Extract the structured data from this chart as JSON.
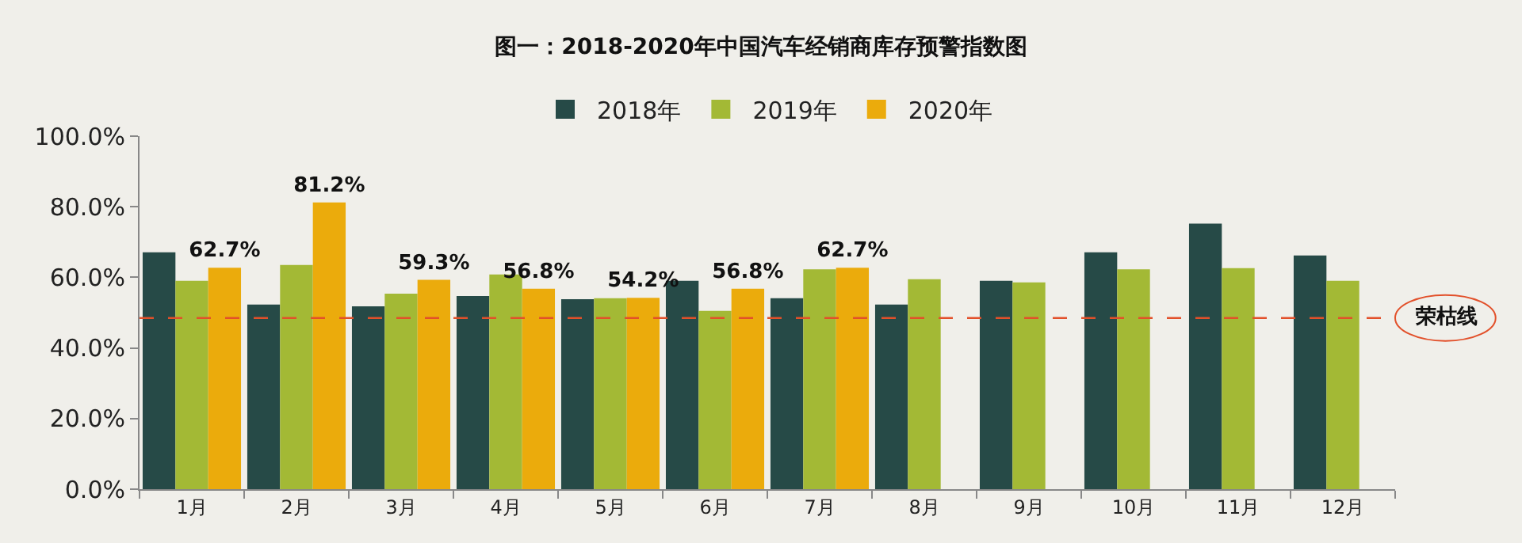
{
  "chart_data": {
    "type": "bar",
    "title": "图一：2018-2020年中国汽车经销商库存预警指数图",
    "categories": [
      "1月",
      "2月",
      "3月",
      "4月",
      "5月",
      "6月",
      "7月",
      "8月",
      "9月",
      "10月",
      "11月",
      "12月"
    ],
    "series": [
      {
        "name": "2018年",
        "color": "#264a47",
        "values": [
          67.1,
          52.3,
          51.8,
          54.7,
          53.8,
          59.0,
          54.1,
          52.3,
          59.0,
          67.1,
          75.2,
          66.2
        ]
      },
      {
        "name": "2019年",
        "color": "#a3b935",
        "values": [
          59.0,
          63.5,
          55.4,
          60.8,
          54.1,
          50.5,
          62.3,
          59.5,
          58.6,
          62.3,
          62.6,
          59.0
        ]
      },
      {
        "name": "2020年",
        "color": "#ebab0c",
        "values": [
          62.7,
          81.2,
          59.3,
          56.8,
          54.2,
          56.8,
          62.7,
          null,
          null,
          null,
          null,
          null
        ],
        "value_labels": [
          "62.7%",
          "81.2%",
          "59.3%",
          "56.8%",
          "54.2%",
          "56.8%",
          "62.7%",
          null,
          null,
          null,
          null,
          null
        ]
      }
    ],
    "ylim": [
      0,
      100
    ],
    "yticks": [
      {
        "value": 0,
        "label": "0.0%"
      },
      {
        "value": 20,
        "label": "20.0%"
      },
      {
        "value": 40,
        "label": "40.0%"
      },
      {
        "value": 60,
        "label": "60.0%"
      },
      {
        "value": 80,
        "label": "80.0%"
      },
      {
        "value": 100,
        "label": "100.0%"
      }
    ],
    "ref_lines": [
      {
        "axis": "y",
        "value": 48.5,
        "label": "荣枯线",
        "color": "#e2502a",
        "line_style": "dashed"
      }
    ],
    "grid": false,
    "legend": "top"
  }
}
